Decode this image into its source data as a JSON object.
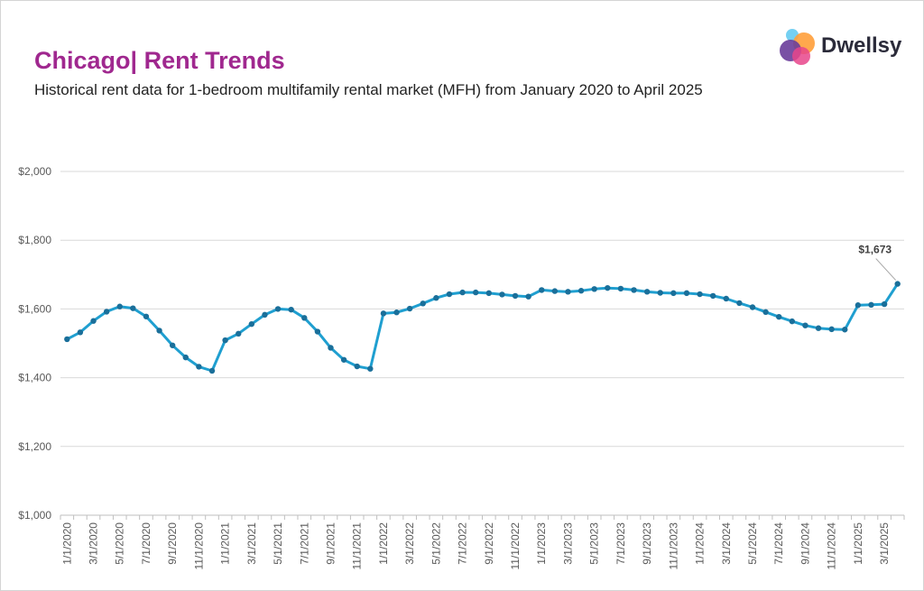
{
  "header": {
    "title": "Chicago| Rent Trends",
    "subtitle": "Historical rent data for 1-bedroom multifamily rental market (MFH) from January 2020 to April 2025"
  },
  "logo": {
    "text": "Dwellsy",
    "colors": [
      "#5dc8f0",
      "#ff9f3a",
      "#6a3d9a",
      "#e8458b"
    ]
  },
  "colors": {
    "line": "#1f9fd0",
    "marker": "#1a6f9a",
    "grid": "#d9d9d9",
    "title": "#a0288f"
  },
  "chart_data": {
    "type": "line",
    "title": "",
    "xlabel": "",
    "ylabel": "",
    "ylim": [
      1000,
      2000
    ],
    "yticks": [
      1000,
      1200,
      1400,
      1600,
      1800,
      2000
    ],
    "ytick_labels": [
      "$1,000",
      "$1,200",
      "$1,400",
      "$1,600",
      "$1,800",
      "$2,000"
    ],
    "grid": true,
    "xtick_labels": [
      "1/1/2020",
      "3/1/2020",
      "5/1/2020",
      "7/1/2020",
      "9/1/2020",
      "11/1/2020",
      "1/1/2021",
      "3/1/2021",
      "5/1/2021",
      "7/1/2021",
      "9/1/2021",
      "11/1/2021",
      "1/1/2022",
      "3/1/2022",
      "5/1/2022",
      "7/1/2022",
      "9/1/2022",
      "11/1/2022",
      "1/1/2023",
      "3/1/2023",
      "5/1/2023",
      "7/1/2023",
      "9/1/2023",
      "11/1/2023",
      "1/1/2024",
      "3/1/2024",
      "5/1/2024",
      "7/1/2024",
      "9/1/2024",
      "11/1/2024",
      "1/1/2025",
      "3/1/2025"
    ],
    "series": [
      {
        "values": [
          1512,
          1532,
          1565,
          1592,
          1607,
          1602,
          1578,
          1537,
          1494,
          1459,
          1432,
          1420,
          1509,
          1528,
          1556,
          1583,
          1600,
          1598,
          1574,
          1534,
          1487,
          1452,
          1433,
          1426,
          1587,
          1590,
          1601,
          1616,
          1632,
          1643,
          1648,
          1648,
          1646,
          1642,
          1638,
          1636,
          1655,
          1652,
          1650,
          1653,
          1658,
          1661,
          1659,
          1655,
          1650,
          1647,
          1646,
          1646,
          1643,
          1638,
          1630,
          1617,
          1605,
          1591,
          1577,
          1564,
          1552,
          1544,
          1541,
          1540,
          1611,
          1612,
          1614,
          1673
        ]
      }
    ],
    "annotation": {
      "label": "$1,673",
      "value": 1673
    }
  }
}
